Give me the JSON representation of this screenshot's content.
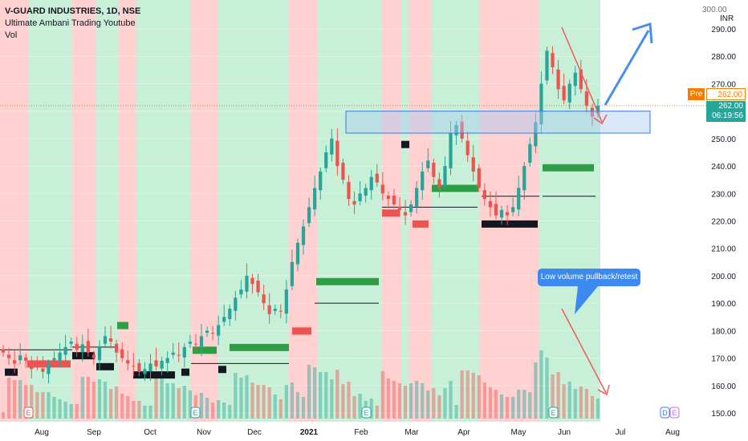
{
  "legend": {
    "symbol": "V-GUARD INDUSTRIES, 1D, NSE",
    "indicator": "Ultimate Ambani Trading Youtube",
    "volume": "Vol"
  },
  "currency": {
    "top": "300.00",
    "unit": "INR"
  },
  "price_labels": {
    "pre_tag": "Pre",
    "pre_price": "262.00",
    "last_price": "262.00",
    "countdown": "06:19:56"
  },
  "annotation": {
    "text": "Low volume pullback/retest"
  },
  "colors": {
    "up": "#26a69a",
    "down": "#ef5350",
    "bg_green": "#c8f0d8",
    "bg_red": "#ffd1d1",
    "arrow_blue": "#4a8fe7",
    "arrow_red": "#f05a5a",
    "box_fill": "#a9c9f5",
    "box_border": "#3d7de0",
    "pre": "#f57c00"
  },
  "chart_data": {
    "type": "candlestick",
    "y_axis": {
      "ticks": [
        150,
        160,
        170,
        180,
        190,
        200,
        210,
        220,
        230,
        240,
        250,
        260,
        270,
        280,
        290
      ],
      "labels": [
        "150.00",
        "160.00",
        "170.00",
        "180.00",
        "190.00",
        "200.00",
        "210.00",
        "220.00",
        "230.00",
        "240.00",
        "250.00",
        "260.00",
        "270.00",
        "280.00",
        "290.00"
      ]
    },
    "x_axis": {
      "labels": [
        "Aug",
        "Sep",
        "Oct",
        "Nov",
        "Dec",
        "2021",
        "Feb",
        "Mar",
        "Apr",
        "May",
        "Jun",
        "Jul",
        "Aug"
      ]
    },
    "event_markers": [
      "E",
      "E",
      "E",
      "E",
      "E"
    ],
    "future_markers": [
      "D",
      "E"
    ],
    "support_resistance_box": {
      "low": 252,
      "high": 260
    },
    "price_path": [
      [
        172,
        170,
        168,
        171,
        169,
        166,
        167,
        165,
        168,
        170
      ],
      [
        172,
        174,
        176,
        173,
        175,
        172,
        170,
        174,
        178,
        176
      ],
      [
        172,
        170,
        168,
        167,
        165,
        166,
        168,
        167,
        169,
        170
      ],
      [
        172,
        171,
        174,
        176,
        175,
        178,
        180,
        179,
        182,
        185
      ],
      [
        188,
        192,
        195,
        200,
        197,
        194,
        190,
        186,
        188,
        187
      ],
      [
        195,
        205,
        212,
        218,
        225,
        232,
        238,
        245,
        250,
        240
      ],
      [
        235,
        228,
        226,
        230,
        232,
        236,
        234,
        230,
        228,
        226
      ],
      [
        224,
        222,
        226,
        232,
        238,
        242,
        236,
        232,
        240,
        252
      ],
      [
        255,
        250,
        244,
        238,
        232,
        228,
        225,
        222,
        224,
        222
      ],
      [
        225,
        232,
        240,
        248,
        256,
        270,
        282,
        276,
        268,
        264
      ],
      [
        270,
        274,
        268,
        262,
        258,
        262
      ]
    ]
  }
}
